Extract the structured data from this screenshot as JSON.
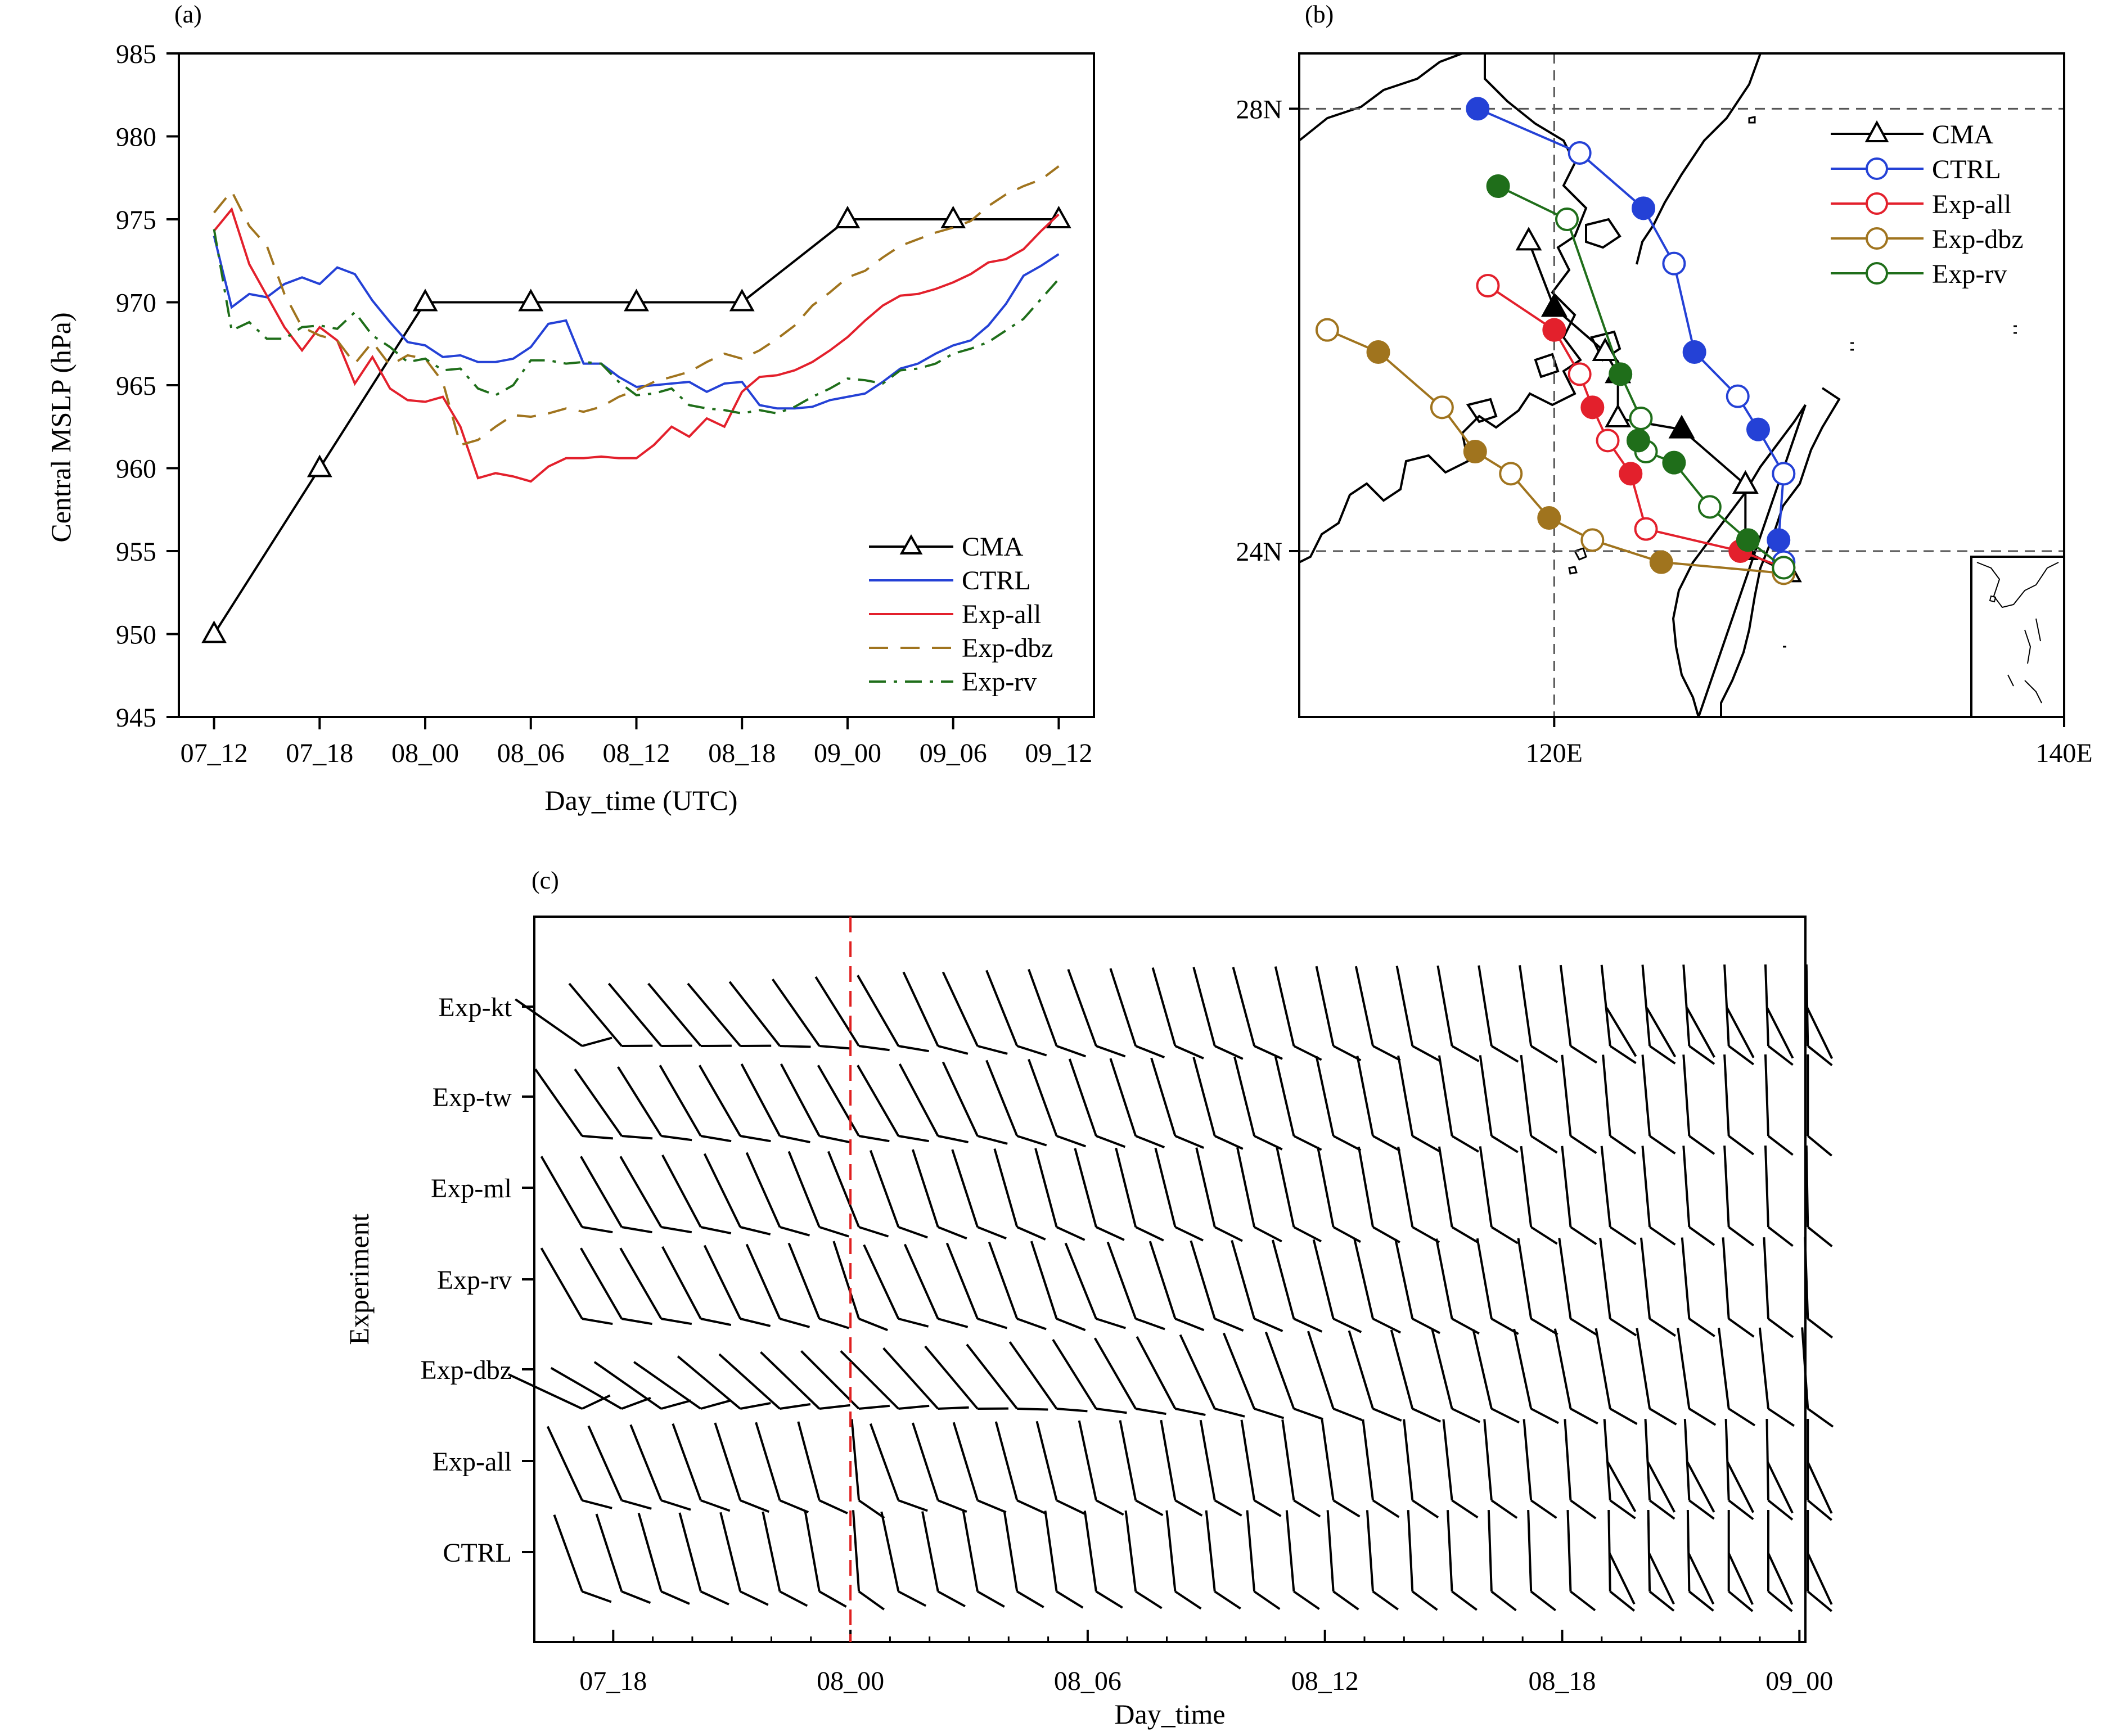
{
  "colors": {
    "cma": "#000000",
    "ctrl": "#2441d6",
    "exp_all": "#e3202c",
    "exp_dbz": "#a0741e",
    "exp_rv": "#1f6e1a",
    "coast": "#000000",
    "marker_line": "#e02020"
  },
  "chart_data": [
    {
      "panel_label": "(a)",
      "type": "line",
      "xlabel": "Day_time (UTC)",
      "ylabel": "Central MSLP (hPa)",
      "xlim": [
        0,
        48
      ],
      "ylim": [
        945,
        985
      ],
      "yticks": [
        945,
        950,
        955,
        960,
        965,
        970,
        975,
        980,
        985
      ],
      "xtick_values": [
        0,
        6,
        12,
        18,
        24,
        30,
        36,
        42,
        48
      ],
      "xtick_labels": [
        "07_12",
        "07_18",
        "08_00",
        "08_06",
        "08_12",
        "08_18",
        "09_00",
        "09_06",
        "09_12"
      ],
      "legend": [
        "CMA",
        "CTRL",
        "Exp-all",
        "Exp-dbz",
        "Exp-rv"
      ],
      "series": [
        {
          "name": "CMA",
          "style": "solid-triangle",
          "color_key": "cma",
          "x": [
            0,
            6,
            12,
            18,
            24,
            30,
            36,
            42,
            48
          ],
          "values": [
            950,
            960,
            970,
            970,
            970,
            970,
            975,
            975,
            975
          ]
        },
        {
          "name": "CTRL",
          "style": "solid",
          "color_key": "ctrl",
          "x": [
            0,
            1,
            2,
            3,
            4,
            5,
            6,
            7,
            8,
            9,
            10,
            11,
            12,
            13,
            14,
            15,
            16,
            17,
            18,
            19,
            20,
            21,
            22,
            23,
            24,
            25,
            26,
            27,
            28,
            29,
            30,
            31,
            32,
            33,
            34,
            35,
            36,
            37,
            38,
            39,
            40,
            41,
            42,
            43,
            44,
            45,
            46,
            47,
            48
          ],
          "values": [
            974,
            969.7,
            970.5,
            970.3,
            971.1,
            971.5,
            971.1,
            972.1,
            971.7,
            970.1,
            968.8,
            967.6,
            967.4,
            966.7,
            966.8,
            966.4,
            966.4,
            966.6,
            967.3,
            968.7,
            968.9,
            966.3,
            966.3,
            965.5,
            964.9,
            965.0,
            965.1,
            965.2,
            964.6,
            965.1,
            965.2,
            963.8,
            963.6,
            963.6,
            963.7,
            964.1,
            964.3,
            964.5,
            965.2,
            966.0,
            966.3,
            966.9,
            967.4,
            967.7,
            968.6,
            969.9,
            971.6,
            972.2,
            972.9
          ]
        },
        {
          "name": "Exp-all",
          "style": "solid",
          "color_key": "exp_all",
          "x": [
            0,
            1,
            2,
            3,
            4,
            5,
            6,
            7,
            8,
            9,
            10,
            11,
            12,
            13,
            14,
            15,
            16,
            17,
            18,
            19,
            20,
            21,
            22,
            23,
            24,
            25,
            26,
            27,
            28,
            29,
            30,
            31,
            32,
            33,
            34,
            35,
            36,
            37,
            38,
            39,
            40,
            41,
            42,
            43,
            44,
            45,
            46,
            47,
            48
          ],
          "values": [
            974.3,
            975.6,
            972.3,
            970.4,
            968.5,
            967.1,
            968.5,
            967.7,
            965.1,
            966.7,
            964.8,
            964.1,
            964.0,
            964.3,
            962.5,
            959.4,
            959.7,
            959.5,
            959.2,
            960.1,
            960.6,
            960.6,
            960.7,
            960.6,
            960.6,
            961.4,
            962.5,
            961.9,
            963.0,
            962.5,
            964.6,
            965.5,
            965.6,
            965.9,
            966.4,
            967.1,
            967.9,
            968.9,
            969.8,
            970.4,
            970.5,
            970.8,
            971.2,
            971.7,
            972.4,
            972.6,
            973.2,
            974.3,
            975.3
          ]
        },
        {
          "name": "Exp-dbz",
          "style": "dashed",
          "color_key": "exp_dbz",
          "x": [
            0,
            1,
            2,
            3,
            4,
            5,
            6,
            7,
            8,
            9,
            10,
            11,
            12,
            13,
            14,
            15,
            16,
            17,
            18,
            19,
            20,
            21,
            22,
            23,
            24,
            25,
            26,
            27,
            28,
            29,
            30,
            31,
            32,
            33,
            34,
            35,
            36,
            37,
            38,
            39,
            40,
            41,
            42,
            43,
            44,
            45,
            46,
            47,
            48
          ],
          "values": [
            975.4,
            976.7,
            974.6,
            973.4,
            970.5,
            968.5,
            968.0,
            967.7,
            966.3,
            967.6,
            966.2,
            966.8,
            966.6,
            965.2,
            961.4,
            961.7,
            962.5,
            963.2,
            963.1,
            963.3,
            963.6,
            963.4,
            963.7,
            964.3,
            964.7,
            965.2,
            965.5,
            965.8,
            966.4,
            966.9,
            966.6,
            967.1,
            967.8,
            968.6,
            969.8,
            970.6,
            971.5,
            971.9,
            972.7,
            973.4,
            973.8,
            974.2,
            974.5,
            974.9,
            975.8,
            976.5,
            977.0,
            977.4,
            978.2
          ]
        },
        {
          "name": "Exp-rv",
          "style": "dashed",
          "color_key": "exp_rv",
          "x": [
            0,
            1,
            2,
            3,
            4,
            5,
            6,
            7,
            8,
            9,
            10,
            11,
            12,
            13,
            14,
            15,
            16,
            17,
            18,
            19,
            20,
            21,
            22,
            23,
            24,
            25,
            26,
            27,
            28,
            29,
            30,
            31,
            32,
            33,
            34,
            35,
            36,
            37,
            38,
            39,
            40,
            41,
            42,
            43,
            44,
            45,
            46,
            47,
            48
          ],
          "values": [
            974.4,
            968.3,
            968.8,
            967.8,
            967.8,
            968.5,
            968.6,
            968.4,
            969.4,
            968.0,
            967.3,
            966.4,
            966.6,
            965.9,
            966.0,
            964.8,
            964.4,
            965.0,
            966.5,
            966.5,
            966.3,
            966.4,
            966.3,
            965.2,
            964.4,
            964.5,
            964.8,
            963.8,
            963.6,
            963.5,
            963.3,
            963.5,
            963.3,
            963.7,
            964.3,
            964.8,
            965.4,
            965.3,
            965.1,
            965.9,
            966.0,
            966.3,
            966.9,
            967.2,
            967.6,
            968.3,
            969.0,
            970.2,
            971.4
          ]
        }
      ]
    },
    {
      "panel_label": "(b)",
      "type": "line",
      "title": "",
      "xlim": [
        110,
        140
      ],
      "ylim": [
        22.5,
        28.5
      ],
      "xtick_labels": [
        "120E",
        "140E"
      ],
      "xticks": [
        120,
        140
      ],
      "ytick_labels": [
        "24N",
        "28N"
      ],
      "yticks": [
        24,
        28
      ],
      "grid": true,
      "legend": [
        "CMA",
        "CTRL",
        "Exp-all",
        "Exp-dbz",
        "Exp-rv"
      ],
      "legend_loc": "top-right",
      "tracks": [
        {
          "name": "CMA",
          "color_key": "cma",
          "marker": "triangle",
          "lon": [
            129.2,
            127.5,
            127.5,
            125.0,
            122.5,
            122.5,
            122.0,
            120.0,
            119.0
          ],
          "lat": [
            23.8,
            24.0,
            24.6,
            25.1,
            25.2,
            25.6,
            25.8,
            26.2,
            26.8
          ]
        },
        {
          "name": "CTRL",
          "color_key": "ctrl",
          "marker": "circle",
          "lon": [
            129.0,
            128.8,
            129.0,
            128.0,
            127.2,
            125.5,
            124.7,
            123.5,
            121.0,
            117.0
          ],
          "lat": [
            23.9,
            24.1,
            24.7,
            25.1,
            25.4,
            25.8,
            26.6,
            27.1,
            27.6,
            28.0
          ]
        },
        {
          "name": "Exp-all",
          "color_key": "exp_all",
          "marker": "circle",
          "lon": [
            129.0,
            127.3,
            123.6,
            123.0,
            122.1,
            121.5,
            121.0,
            120.0,
            117.4
          ],
          "lat": [
            23.85,
            24.0,
            24.2,
            24.7,
            25.0,
            25.3,
            25.6,
            26.0,
            26.4
          ]
        },
        {
          "name": "Exp-dbz",
          "color_key": "exp_dbz",
          "marker": "circle",
          "lon": [
            129.0,
            124.2,
            121.5,
            119.8,
            118.3,
            116.9,
            115.6,
            113.1,
            111.1
          ],
          "lat": [
            23.8,
            23.9,
            24.1,
            24.3,
            24.7,
            24.9,
            25.3,
            25.8,
            26.0
          ]
        },
        {
          "name": "Exp-rv",
          "color_key": "exp_rv",
          "marker": "circle",
          "lon": [
            129.0,
            127.6,
            126.1,
            124.7,
            123.6,
            123.3,
            123.4,
            122.6,
            120.5,
            117.8
          ],
          "lat": [
            23.85,
            24.1,
            24.4,
            24.8,
            24.9,
            25.0,
            25.2,
            25.6,
            27.0,
            27.3
          ]
        }
      ],
      "filled_markers_every_other": true
    },
    {
      "panel_label": "(c)",
      "type": "barbs",
      "xlabel": "Day_time",
      "ylabel": "Experiment",
      "xlim": [
        0,
        32
      ],
      "xtick_values": [
        1,
        7,
        13,
        19,
        25,
        31
      ],
      "xtick_labels": [
        "07_18",
        "08_00",
        "08_06",
        "08_12",
        "08_18",
        "09_00"
      ],
      "vline_at": 7,
      "categories": [
        "Exp-kt",
        "Exp-tw",
        "Exp-ml",
        "Exp-rv",
        "Exp-dbz",
        "Exp-all",
        "CTRL"
      ],
      "times": [
        0,
        1,
        2,
        3,
        4,
        5,
        6,
        7,
        8,
        9,
        10,
        11,
        12,
        13,
        14,
        15,
        16,
        17,
        18,
        19,
        20,
        21,
        22,
        23,
        24,
        25,
        26,
        27,
        28,
        29,
        30,
        31
      ],
      "direction_toward_deg": {
        "Exp-kt": [
          125,
          140,
          140,
          140,
          140,
          142,
          145,
          148,
          150,
          155,
          155,
          158,
          160,
          160,
          162,
          164,
          165,
          165,
          167,
          168,
          168,
          169,
          170,
          171,
          172,
          173,
          174,
          175,
          176,
          177,
          178,
          179
        ],
        "Exp-tw": [
          145,
          145,
          148,
          150,
          150,
          152,
          152,
          150,
          150,
          152,
          155,
          158,
          160,
          161,
          162,
          163,
          165,
          166,
          167,
          168,
          169,
          170,
          171,
          172,
          173,
          174,
          175,
          175,
          176,
          177,
          178,
          180
        ],
        "Exp-ml": [
          150,
          150,
          150,
          152,
          154,
          156,
          158,
          158,
          160,
          162,
          162,
          164,
          165,
          165,
          166,
          166,
          167,
          168,
          168,
          169,
          170,
          170,
          171,
          172,
          173,
          174,
          174,
          175,
          176,
          177,
          178,
          179
        ],
        "Exp-rv": [
          150,
          150,
          150,
          152,
          154,
          156,
          158,
          162,
          155,
          156,
          158,
          160,
          162,
          158,
          160,
          162,
          163,
          164,
          165,
          166,
          167,
          168,
          169,
          170,
          171,
          172,
          173,
          174,
          175,
          176,
          177,
          178
        ],
        "Exp-dbz": [
          115,
          120,
          125,
          125,
          130,
          132,
          134,
          135,
          135,
          138,
          140,
          142,
          145,
          148,
          150,
          152,
          155,
          158,
          160,
          162,
          163,
          165,
          166,
          167,
          168,
          169,
          170,
          171,
          172,
          173,
          174,
          176
        ],
        "Exp-all": [
          155,
          156,
          158,
          160,
          162,
          163,
          165,
          175,
          160,
          162,
          163,
          165,
          166,
          168,
          169,
          170,
          170,
          171,
          172,
          172,
          173,
          174,
          174,
          175,
          175,
          176,
          176,
          177,
          177,
          178,
          179,
          180
        ],
        "CTRL": [
          160,
          162,
          164,
          165,
          166,
          168,
          170,
          176,
          168,
          169,
          170,
          171,
          172,
          172,
          173,
          174,
          174,
          175,
          175,
          176,
          176,
          177,
          177,
          178,
          178,
          178,
          179,
          179,
          179,
          180,
          180,
          180
        ]
      }
    }
  ]
}
